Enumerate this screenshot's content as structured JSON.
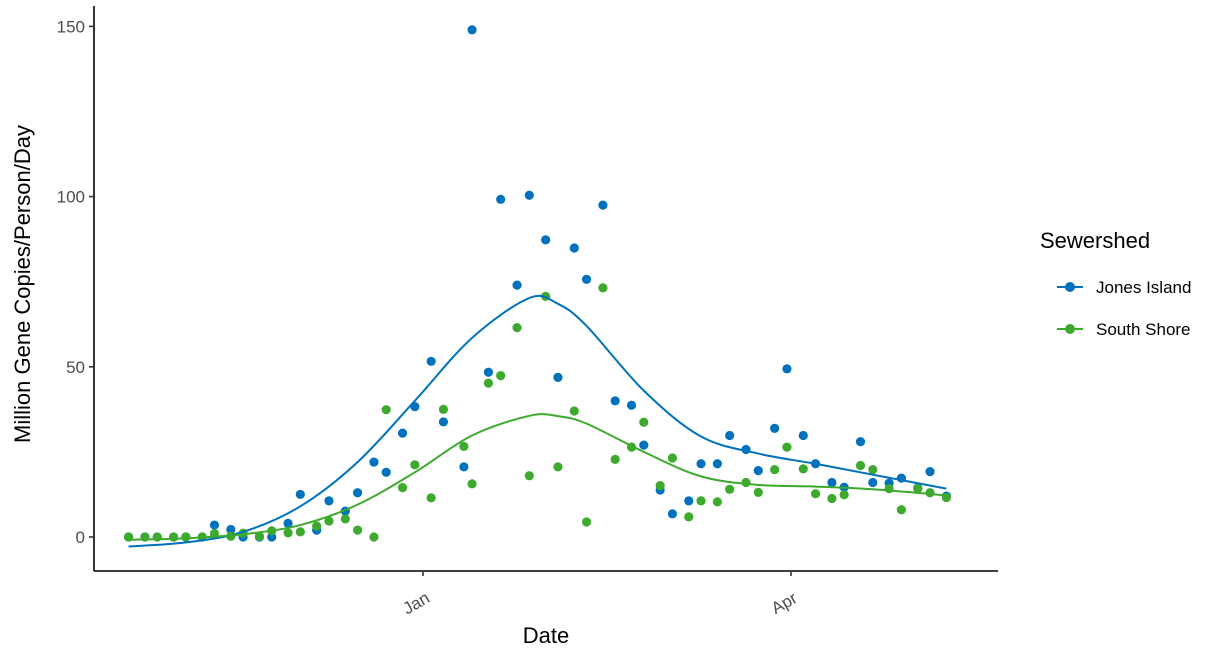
{
  "chart_data": {
    "type": "scatter",
    "title": "",
    "xlabel": "Date",
    "ylabel": "Million Gene Copies/Person/Day",
    "x_axis": {
      "type": "date",
      "ticks": [
        {
          "date": "2021-01-01",
          "label": "Jan"
        },
        {
          "date": "2021-04-01",
          "label": "Apr"
        }
      ]
    },
    "y_axis": {
      "ticks": [
        0,
        50,
        100,
        150
      ],
      "ylim": [
        -10,
        156
      ]
    },
    "grid": false,
    "legend": {
      "title": "Sewershed",
      "position": "right"
    },
    "series": [
      {
        "name": "Jones Island",
        "color": "#0072BD",
        "points": [
          [
            "2020-10-21",
            0
          ],
          [
            "2020-10-25",
            0
          ],
          [
            "2020-10-28",
            0
          ],
          [
            "2020-11-01",
            0
          ],
          [
            "2020-11-04",
            0
          ],
          [
            "2020-11-08",
            0
          ],
          [
            "2020-11-11",
            3.5
          ],
          [
            "2020-11-15",
            2.2
          ],
          [
            "2020-11-18",
            0
          ],
          [
            "2020-11-22",
            0
          ],
          [
            "2020-11-25",
            0
          ],
          [
            "2020-11-29",
            4
          ],
          [
            "2020-12-02",
            12.5
          ],
          [
            "2020-12-06",
            2
          ],
          [
            "2020-12-09",
            10.6
          ],
          [
            "2020-12-13",
            7.6
          ],
          [
            "2020-12-16",
            13
          ],
          [
            "2020-12-20",
            22
          ],
          [
            "2020-12-23",
            19
          ],
          [
            "2020-12-27",
            30.5
          ],
          [
            "2020-12-30",
            38.3
          ],
          [
            "2021-01-03",
            51.6
          ],
          [
            "2021-01-06",
            33.8
          ],
          [
            "2021-01-11",
            20.6
          ],
          [
            "2021-01-13",
            149
          ],
          [
            "2021-01-17",
            48.4
          ],
          [
            "2021-01-20",
            99.2
          ],
          [
            "2021-01-24",
            74
          ],
          [
            "2021-01-27",
            100.4
          ],
          [
            "2021-01-31",
            87.3
          ],
          [
            "2021-02-03",
            46.9
          ],
          [
            "2021-02-07",
            84.9
          ],
          [
            "2021-02-10",
            75.7
          ],
          [
            "2021-02-14",
            97.5
          ],
          [
            "2021-02-17",
            40
          ],
          [
            "2021-02-21",
            38.7
          ],
          [
            "2021-02-24",
            27
          ],
          [
            "2021-02-28",
            13.8
          ],
          [
            "2021-03-03",
            6.8
          ],
          [
            "2021-03-07",
            10.6
          ],
          [
            "2021-03-10",
            21.5
          ],
          [
            "2021-03-14",
            21.5
          ],
          [
            "2021-03-17",
            29.8
          ],
          [
            "2021-03-21",
            25.7
          ],
          [
            "2021-03-24",
            19.5
          ],
          [
            "2021-03-28",
            31.9
          ],
          [
            "2021-03-31",
            49.4
          ],
          [
            "2021-04-04",
            29.8
          ],
          [
            "2021-04-07",
            21.5
          ],
          [
            "2021-04-11",
            16
          ],
          [
            "2021-04-14",
            14.6
          ],
          [
            "2021-04-18",
            28
          ],
          [
            "2021-04-21",
            16
          ],
          [
            "2021-04-25",
            15.8
          ],
          [
            "2021-04-28",
            17.3
          ],
          [
            "2021-05-02",
            14.4
          ],
          [
            "2021-05-05",
            19.2
          ],
          [
            "2021-05-09",
            12
          ]
        ],
        "smooth": [
          [
            "2020-10-21",
            -2.8
          ],
          [
            "2020-11-04",
            -1.6
          ],
          [
            "2020-11-18",
            1.5
          ],
          [
            "2020-12-02",
            9
          ],
          [
            "2020-12-16",
            22
          ],
          [
            "2020-12-30",
            40
          ],
          [
            "2021-01-13",
            58.5
          ],
          [
            "2021-01-27",
            70.2
          ],
          [
            "2021-02-03",
            68.5
          ],
          [
            "2021-02-10",
            62
          ],
          [
            "2021-02-24",
            43
          ],
          [
            "2021-03-10",
            29.5
          ],
          [
            "2021-03-24",
            24.5
          ],
          [
            "2021-04-07",
            21.5
          ],
          [
            "2021-04-21",
            18.3
          ],
          [
            "2021-05-09",
            14.2
          ]
        ]
      },
      {
        "name": "South Shore",
        "color": "#3DAA2E",
        "points": [
          [
            "2020-10-21",
            0
          ],
          [
            "2020-10-25",
            0
          ],
          [
            "2020-10-28",
            0
          ],
          [
            "2020-11-01",
            0
          ],
          [
            "2020-11-04",
            0
          ],
          [
            "2020-11-08",
            0
          ],
          [
            "2020-11-11",
            1
          ],
          [
            "2020-11-15",
            0.2
          ],
          [
            "2020-11-18",
            1.1
          ],
          [
            "2020-11-22",
            0.2
          ],
          [
            "2020-11-25",
            1.8
          ],
          [
            "2020-11-29",
            1.2
          ],
          [
            "2020-12-02",
            1.5
          ],
          [
            "2020-12-06",
            3.2
          ],
          [
            "2020-12-09",
            4.7
          ],
          [
            "2020-12-13",
            5.3
          ],
          [
            "2020-12-16",
            2
          ],
          [
            "2020-12-20",
            0
          ],
          [
            "2020-12-23",
            37.4
          ],
          [
            "2020-12-27",
            14.5
          ],
          [
            "2020-12-30",
            21.2
          ],
          [
            "2021-01-03",
            11.5
          ],
          [
            "2021-01-06",
            37.5
          ],
          [
            "2021-01-11",
            26.6
          ],
          [
            "2021-01-13",
            15.6
          ],
          [
            "2021-01-17",
            45.2
          ],
          [
            "2021-01-20",
            47.4
          ],
          [
            "2021-01-24",
            61.5
          ],
          [
            "2021-01-27",
            18
          ],
          [
            "2021-01-31",
            70.7
          ],
          [
            "2021-02-03",
            20.6
          ],
          [
            "2021-02-07",
            37
          ],
          [
            "2021-02-10",
            4.4
          ],
          [
            "2021-02-14",
            73.2
          ],
          [
            "2021-02-17",
            22.8
          ],
          [
            "2021-02-21",
            26.4
          ],
          [
            "2021-02-24",
            33.7
          ],
          [
            "2021-02-28",
            15.1
          ],
          [
            "2021-03-03",
            23.2
          ],
          [
            "2021-03-07",
            5.9
          ],
          [
            "2021-03-10",
            10.6
          ],
          [
            "2021-03-14",
            10.3
          ],
          [
            "2021-03-17",
            14
          ],
          [
            "2021-03-21",
            16
          ],
          [
            "2021-03-24",
            13.1
          ],
          [
            "2021-03-28",
            19.8
          ],
          [
            "2021-03-31",
            26.4
          ],
          [
            "2021-04-04",
            20
          ],
          [
            "2021-04-07",
            12.7
          ],
          [
            "2021-04-11",
            11.3
          ],
          [
            "2021-04-14",
            12.4
          ],
          [
            "2021-04-18",
            21
          ],
          [
            "2021-04-21",
            19.8
          ],
          [
            "2021-04-25",
            14.2
          ],
          [
            "2021-04-28",
            8
          ],
          [
            "2021-05-02",
            14.2
          ],
          [
            "2021-05-05",
            13
          ],
          [
            "2021-05-09",
            11.6
          ]
        ],
        "smooth": [
          [
            "2020-10-21",
            -0.8
          ],
          [
            "2020-11-04",
            -0.4
          ],
          [
            "2020-11-18",
            0.8
          ],
          [
            "2020-12-02",
            3.5
          ],
          [
            "2020-12-16",
            9.5
          ],
          [
            "2020-12-30",
            19
          ],
          [
            "2021-01-13",
            29.8
          ],
          [
            "2021-01-27",
            35.6
          ],
          [
            "2021-02-03",
            35.5
          ],
          [
            "2021-02-10",
            33.3
          ],
          [
            "2021-02-24",
            25
          ],
          [
            "2021-03-10",
            17.8
          ],
          [
            "2021-03-24",
            15.3
          ],
          [
            "2021-04-07",
            14.8
          ],
          [
            "2021-04-21",
            14
          ],
          [
            "2021-05-09",
            12.2
          ]
        ]
      }
    ]
  }
}
